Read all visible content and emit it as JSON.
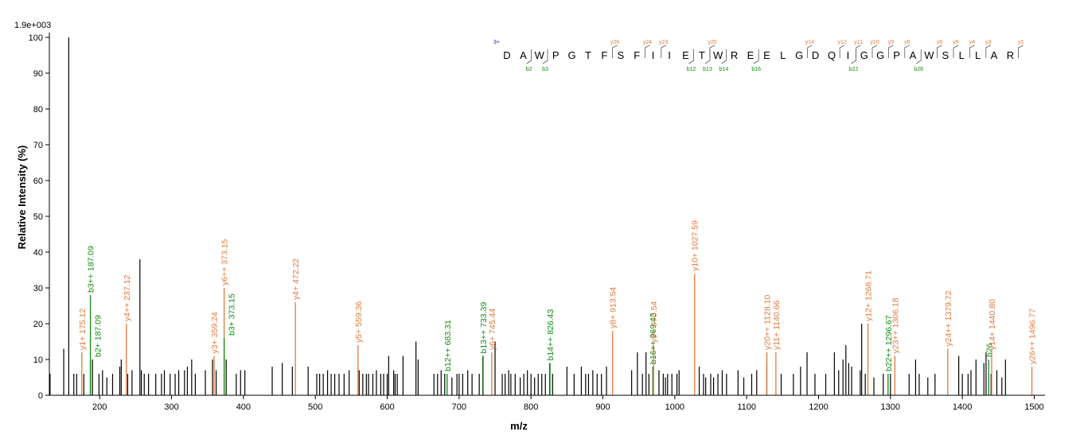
{
  "chart_data": {
    "type": "bar",
    "scale_label": "1.9e+003",
    "xlabel": "m/z",
    "ylabel": "Relative Intensity (%)",
    "xlim": [
      130,
      1515
    ],
    "ylim": [
      0,
      100
    ],
    "x_ticks": [
      200,
      300,
      400,
      500,
      600,
      700,
      800,
      900,
      1000,
      1100,
      1200,
      1300,
      1400,
      1500
    ],
    "y_ticks": [
      0,
      10,
      20,
      30,
      40,
      50,
      60,
      70,
      80,
      90,
      100
    ],
    "colors": {
      "unassigned": "#000000",
      "y_ion": "#e07a3c",
      "b_ion": "#158a15",
      "charge": "#1a1aa8"
    },
    "unassigned_peaks": [
      [
        131,
        6
      ],
      [
        150,
        13
      ],
      [
        157,
        100
      ],
      [
        164,
        6
      ],
      [
        168,
        6
      ],
      [
        178,
        6
      ],
      [
        190,
        10
      ],
      [
        199,
        6
      ],
      [
        204,
        7
      ],
      [
        210,
        5
      ],
      [
        218,
        6
      ],
      [
        228,
        8
      ],
      [
        230,
        10
      ],
      [
        239,
        6
      ],
      [
        245,
        7
      ],
      [
        256,
        38
      ],
      [
        258,
        7
      ],
      [
        262,
        6
      ],
      [
        268,
        6
      ],
      [
        278,
        6
      ],
      [
        286,
        6
      ],
      [
        290,
        7
      ],
      [
        298,
        6
      ],
      [
        305,
        6
      ],
      [
        310,
        7
      ],
      [
        318,
        7
      ],
      [
        322,
        8
      ],
      [
        328,
        10
      ],
      [
        333,
        6
      ],
      [
        347,
        7
      ],
      [
        357,
        10
      ],
      [
        362,
        7
      ],
      [
        376,
        10
      ],
      [
        390,
        6
      ],
      [
        396,
        7
      ],
      [
        402,
        7
      ],
      [
        440,
        8
      ],
      [
        454,
        9
      ],
      [
        468,
        8
      ],
      [
        490,
        8
      ],
      [
        502,
        6
      ],
      [
        506,
        6
      ],
      [
        511,
        6
      ],
      [
        517,
        7
      ],
      [
        522,
        6
      ],
      [
        527,
        6
      ],
      [
        533,
        6
      ],
      [
        540,
        6
      ],
      [
        547,
        7
      ],
      [
        561,
        7
      ],
      [
        566,
        6
      ],
      [
        571,
        6
      ],
      [
        574,
        6
      ],
      [
        580,
        6
      ],
      [
        585,
        7
      ],
      [
        591,
        6
      ],
      [
        595,
        6
      ],
      [
        600,
        6
      ],
      [
        602,
        11
      ],
      [
        609,
        7
      ],
      [
        611,
        6
      ],
      [
        614,
        6
      ],
      [
        622,
        11
      ],
      [
        640,
        15
      ],
      [
        643,
        10
      ],
      [
        665,
        6
      ],
      [
        670,
        6
      ],
      [
        675,
        7
      ],
      [
        680,
        6
      ],
      [
        690,
        5
      ],
      [
        697,
        6
      ],
      [
        700,
        6
      ],
      [
        705,
        6
      ],
      [
        712,
        7
      ],
      [
        718,
        6
      ],
      [
        728,
        6
      ],
      [
        733,
        11
      ],
      [
        750,
        15
      ],
      [
        760,
        6
      ],
      [
        764,
        6
      ],
      [
        769,
        7
      ],
      [
        772,
        6
      ],
      [
        778,
        6
      ],
      [
        785,
        5
      ],
      [
        790,
        6
      ],
      [
        795,
        7
      ],
      [
        800,
        6
      ],
      [
        805,
        5
      ],
      [
        810,
        6
      ],
      [
        815,
        6
      ],
      [
        820,
        6
      ],
      [
        826,
        9
      ],
      [
        830,
        6
      ],
      [
        850,
        8
      ],
      [
        860,
        6
      ],
      [
        870,
        8
      ],
      [
        876,
        6
      ],
      [
        880,
        6
      ],
      [
        886,
        7
      ],
      [
        892,
        6
      ],
      [
        898,
        6
      ],
      [
        905,
        8
      ],
      [
        940,
        7
      ],
      [
        948,
        12
      ],
      [
        955,
        6
      ],
      [
        960,
        12
      ],
      [
        964,
        6
      ],
      [
        978,
        7
      ],
      [
        984,
        6
      ],
      [
        987,
        5
      ],
      [
        990,
        6
      ],
      [
        996,
        6
      ],
      [
        1003,
        6
      ],
      [
        1006,
        7
      ],
      [
        1034,
        8
      ],
      [
        1040,
        6
      ],
      [
        1043,
        5
      ],
      [
        1050,
        6
      ],
      [
        1054,
        5
      ],
      [
        1060,
        6
      ],
      [
        1066,
        7
      ],
      [
        1072,
        6
      ],
      [
        1088,
        7
      ],
      [
        1096,
        5
      ],
      [
        1107,
        6
      ],
      [
        1114,
        7
      ],
      [
        1128,
        9
      ],
      [
        1148,
        6
      ],
      [
        1165,
        6
      ],
      [
        1175,
        8
      ],
      [
        1184,
        12
      ],
      [
        1195,
        6
      ],
      [
        1210,
        6
      ],
      [
        1222,
        12
      ],
      [
        1228,
        7
      ],
      [
        1234,
        10
      ],
      [
        1238,
        14
      ],
      [
        1242,
        9
      ],
      [
        1246,
        8
      ],
      [
        1258,
        7
      ],
      [
        1260,
        20
      ],
      [
        1265,
        6
      ],
      [
        1277,
        5
      ],
      [
        1290,
        6
      ],
      [
        1300,
        6
      ],
      [
        1326,
        6
      ],
      [
        1335,
        10
      ],
      [
        1340,
        6
      ],
      [
        1352,
        5
      ],
      [
        1362,
        6
      ],
      [
        1395,
        11
      ],
      [
        1400,
        6
      ],
      [
        1408,
        6
      ],
      [
        1412,
        7
      ],
      [
        1419,
        10
      ],
      [
        1430,
        9
      ],
      [
        1433,
        12
      ],
      [
        1440,
        6
      ],
      [
        1448,
        7
      ],
      [
        1455,
        5
      ],
      [
        1460,
        10
      ]
    ],
    "annotated_peaks": [
      {
        "x": 175.12,
        "y": 12,
        "label": "y1+ 175.12",
        "ion": "y"
      },
      {
        "x": 187.09,
        "y": 28,
        "label": "b3++ 187.09",
        "ion": "b"
      },
      {
        "x": 187.09,
        "y": 10,
        "label": "b2+ 187.09",
        "ion": "b"
      },
      {
        "x": 237.12,
        "y": 20,
        "label": "y4++ 237.12",
        "ion": "y"
      },
      {
        "x": 359.24,
        "y": 11,
        "label": "y3+ 359.24",
        "ion": "y"
      },
      {
        "x": 373.15,
        "y": 30,
        "label": "y6++ 373.15",
        "ion": "y"
      },
      {
        "x": 373.15,
        "y": 16,
        "label": "b3+ 373.15",
        "ion": "b"
      },
      {
        "x": 472.22,
        "y": 26,
        "label": "y4+ 472.22",
        "ion": "y"
      },
      {
        "x": 559.36,
        "y": 14,
        "label": "y5+ 559.36",
        "ion": "y"
      },
      {
        "x": 683.31,
        "y": 6,
        "label": "b12++ 683.31",
        "ion": "b"
      },
      {
        "x": 733.39,
        "y": 11,
        "label": "b13++ 733.39",
        "ion": "b"
      },
      {
        "x": 745.44,
        "y": 12,
        "label": "y6+ 745.44",
        "ion": "y"
      },
      {
        "x": 826.43,
        "y": 9,
        "label": "b14++ 826.43",
        "ion": "b"
      },
      {
        "x": 913.54,
        "y": 18,
        "label": "y8+ 913.54",
        "ion": "y"
      },
      {
        "x": 969.43,
        "y": 8,
        "label": "b16++ 969.43",
        "ion": "b"
      },
      {
        "x": 970.54,
        "y": 14,
        "label": "y9+ 970.54",
        "ion": "y"
      },
      {
        "x": 1027.59,
        "y": 34,
        "label": "y10+ 1027.59",
        "ion": "y"
      },
      {
        "x": 1128.1,
        "y": 12,
        "label": "y20++ 1128.10",
        "ion": "y"
      },
      {
        "x": 1140.66,
        "y": 12,
        "label": "y11+ 1140.66",
        "ion": "y"
      },
      {
        "x": 1268.71,
        "y": 20,
        "label": "y12+ 1268.71",
        "ion": "y"
      },
      {
        "x": 1296.67,
        "y": 6,
        "label": "b22++ 1296.67",
        "ion": "b"
      },
      {
        "x": 1306.18,
        "y": 11,
        "label": "y23++ 1306.18",
        "ion": "y"
      },
      {
        "x": 1379.72,
        "y": 13,
        "label": "y24++ 1379.72",
        "ion": "y"
      },
      {
        "x": 1436.7,
        "y": 10,
        "label": "b26",
        "ion": "b"
      },
      {
        "x": 1440.8,
        "y": 12,
        "label": "y14+ 1440.80",
        "ion": "y"
      },
      {
        "x": 1496.77,
        "y": 8,
        "label": "y26++ 1496.77",
        "ion": "y"
      }
    ],
    "sequence": {
      "charge": "3+",
      "residues": [
        "D",
        "A",
        "W",
        "P",
        "G",
        "T",
        "F",
        "S",
        "F",
        "I",
        "I",
        "E",
        "T",
        "W",
        "R",
        "E",
        "E",
        "L",
        "G",
        "D",
        "Q",
        "I",
        "G",
        "G",
        "P",
        "A",
        "W",
        "S",
        "L",
        "L",
        "A",
        "R"
      ],
      "y_marks": [
        {
          "after": 6,
          "label": "y26"
        },
        {
          "after": 8,
          "label": "y24"
        },
        {
          "after": 9,
          "label": "y23"
        },
        {
          "after": 12,
          "label": "y20"
        },
        {
          "after": 18,
          "label": "y14"
        },
        {
          "after": 20,
          "label": "y12"
        },
        {
          "after": 21,
          "label": "y11"
        },
        {
          "after": 22,
          "label": "y10"
        },
        {
          "after": 23,
          "label": "y9"
        },
        {
          "after": 24,
          "label": "y8"
        },
        {
          "after": 26,
          "label": "y6"
        },
        {
          "after": 27,
          "label": "y5"
        },
        {
          "after": 28,
          "label": "y4"
        },
        {
          "after": 29,
          "label": "y3"
        },
        {
          "after": 31,
          "label": "y1"
        }
      ],
      "b_marks": [
        {
          "after": 2,
          "label": "b2"
        },
        {
          "after": 3,
          "label": "b3"
        },
        {
          "after": 12,
          "label": "b12"
        },
        {
          "after": 13,
          "label": "b13"
        },
        {
          "after": 14,
          "label": "b14"
        },
        {
          "after": 16,
          "label": "b16"
        },
        {
          "after": 22,
          "label": "b22"
        },
        {
          "after": 26,
          "label": "b26"
        }
      ]
    }
  }
}
